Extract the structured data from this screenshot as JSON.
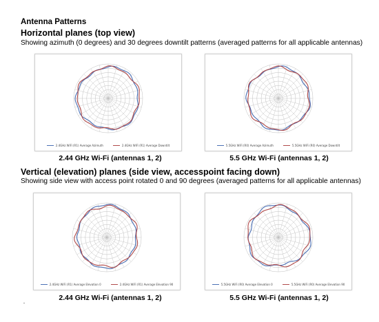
{
  "title": "Antenna Patterns",
  "sections": [
    {
      "heading": "Horizontal planes (top view)",
      "description": "Showing azimuth (0 degrees) and 30 degrees downtilt patterns (averaged patterns for all applicable antennas)",
      "plots": [
        {
          "caption": "2.44 GHz Wi-Fi (antennas 1, 2)",
          "legend": [
            "2.4GHz WiFi (R1) Average Azimuth",
            "2.4GHz WiFi (R1) Average Downtilt"
          ]
        },
        {
          "caption": "5.5 GHz Wi-Fi (antennas 1, 2)",
          "legend": [
            "5.5GHz WiFi (R0) Average Azimuth",
            "5.5GHz WiFi (R0) Average Downtilt"
          ]
        }
      ]
    },
    {
      "heading": "Vertical (elevation) planes (side view, accesspoint facing down)",
      "description": "Showing side view with access point rotated 0 and 90 degrees (averaged patterns for all applicable antennas)",
      "plots": [
        {
          "caption": "2.44 GHz Wi-Fi (antennas 1, 2)",
          "legend": [
            "2.4GHz WiFi (R1) Average Elevation 0",
            "2.4GHz WiFi (R1) Average Elevation 90"
          ]
        },
        {
          "caption": "5.5 GHz Wi-Fi (antennas 1, 2)",
          "legend": [
            "5.5GHz WiFi (R0) Average Elevation 0",
            "5.5GHz WiFi (R0) Average Elevation 90"
          ]
        }
      ]
    }
  ],
  "colors": {
    "series_a": "#4a6fb5",
    "series_b": "#b04a4a",
    "grid": "#bdbdbd"
  }
}
